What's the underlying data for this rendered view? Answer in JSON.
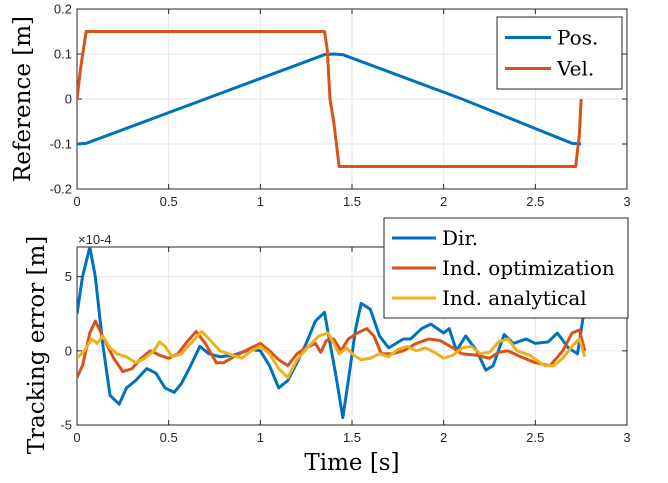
{
  "chart_data": [
    {
      "type": "line",
      "ylabel": "Reference [m]",
      "xlim": [
        0,
        3
      ],
      "ylim": [
        -0.2,
        0.2
      ],
      "x_ticks": [
        "0",
        "0.5",
        "1",
        "1.5",
        "2",
        "2.5",
        "3"
      ],
      "y_ticks": [
        "-0.2",
        "-0.1",
        "0",
        "0.1",
        "0.2"
      ],
      "grid": true,
      "legend_position": "top-right",
      "series": [
        {
          "name": "Pos.",
          "color": "#0072BD",
          "points": [
            [
              0.0,
              -0.1
            ],
            [
              0.05,
              -0.0985
            ],
            [
              0.7,
              0.0
            ],
            [
              1.35,
              0.0985
            ],
            [
              1.4,
              0.1
            ],
            [
              1.45,
              0.0985
            ],
            [
              2.1,
              0.0
            ],
            [
              2.7,
              -0.0985
            ],
            [
              2.75,
              -0.1
            ]
          ]
        },
        {
          "name": "Vel.",
          "color": "#D95319",
          "points": [
            [
              0.0,
              0.0
            ],
            [
              0.02,
              0.07
            ],
            [
              0.05,
              0.15
            ],
            [
              1.35,
              0.15
            ],
            [
              1.365,
              0.11
            ],
            [
              1.38,
              0.0
            ],
            [
              1.4,
              -0.05
            ],
            [
              1.43,
              -0.15
            ],
            [
              2.72,
              -0.15
            ],
            [
              2.74,
              -0.08
            ],
            [
              2.75,
              0.0
            ]
          ]
        }
      ]
    },
    {
      "type": "line",
      "xlabel": "Time [s]",
      "ylabel": "Tracking error [m]",
      "y_exponent": "×10-4",
      "xlim": [
        0,
        3
      ],
      "ylim": [
        -5,
        7
      ],
      "x_ticks": [
        "0",
        "0.5",
        "1",
        "1.5",
        "2",
        "2.5",
        "3"
      ],
      "y_ticks": [
        "-5",
        "0",
        "5"
      ],
      "grid": true,
      "legend_position": "top-right",
      "series": [
        {
          "name": "Dir.",
          "color": "#0072BD",
          "points": [
            [
              0.0,
              2.5
            ],
            [
              0.03,
              5.0
            ],
            [
              0.07,
              7.0
            ],
            [
              0.1,
              5.0
            ],
            [
              0.14,
              0.5
            ],
            [
              0.18,
              -3.0
            ],
            [
              0.23,
              -3.6
            ],
            [
              0.27,
              -2.5
            ],
            [
              0.32,
              -2.0
            ],
            [
              0.38,
              -1.2
            ],
            [
              0.43,
              -1.5
            ],
            [
              0.48,
              -2.5
            ],
            [
              0.53,
              -2.8
            ],
            [
              0.57,
              -2.2
            ],
            [
              0.62,
              -1.0
            ],
            [
              0.67,
              0.3
            ],
            [
              0.72,
              -0.2
            ],
            [
              0.78,
              -0.4
            ],
            [
              0.85,
              -0.3
            ],
            [
              0.9,
              -0.1
            ],
            [
              0.95,
              0.1
            ],
            [
              1.0,
              0.0
            ],
            [
              1.05,
              -1.0
            ],
            [
              1.1,
              -2.5
            ],
            [
              1.15,
              -2.0
            ],
            [
              1.2,
              -0.8
            ],
            [
              1.25,
              0.5
            ],
            [
              1.3,
              2.0
            ],
            [
              1.35,
              2.6
            ],
            [
              1.38,
              0.5
            ],
            [
              1.41,
              -1.5
            ],
            [
              1.45,
              -4.5
            ],
            [
              1.48,
              -2.0
            ],
            [
              1.52,
              1.5
            ],
            [
              1.55,
              3.2
            ],
            [
              1.6,
              2.8
            ],
            [
              1.65,
              1.0
            ],
            [
              1.7,
              0.2
            ],
            [
              1.78,
              0.8
            ],
            [
              1.82,
              0.8
            ],
            [
              1.88,
              1.5
            ],
            [
              1.93,
              1.8
            ],
            [
              2.0,
              1.2
            ],
            [
              2.03,
              1.5
            ],
            [
              2.07,
              0.0
            ],
            [
              2.12,
              1.0
            ],
            [
              2.18,
              0.0
            ],
            [
              2.23,
              -1.3
            ],
            [
              2.27,
              -1.0
            ],
            [
              2.33,
              1.1
            ],
            [
              2.38,
              0.5
            ],
            [
              2.45,
              0.8
            ],
            [
              2.5,
              0.5
            ],
            [
              2.57,
              0.6
            ],
            [
              2.62,
              1.2
            ],
            [
              2.68,
              0.2
            ],
            [
              2.73,
              -0.2
            ],
            [
              2.77,
              3.0
            ]
          ]
        },
        {
          "name": "Ind. optimization",
          "color": "#D95319",
          "points": [
            [
              0.0,
              -1.8
            ],
            [
              0.03,
              -1.0
            ],
            [
              0.07,
              1.2
            ],
            [
              0.1,
              2.0
            ],
            [
              0.14,
              1.0
            ],
            [
              0.2,
              -0.5
            ],
            [
              0.25,
              -1.4
            ],
            [
              0.3,
              -1.2
            ],
            [
              0.35,
              -0.5
            ],
            [
              0.4,
              0.0
            ],
            [
              0.45,
              -0.3
            ],
            [
              0.5,
              -0.5
            ],
            [
              0.55,
              -0.2
            ],
            [
              0.6,
              0.6
            ],
            [
              0.65,
              1.3
            ],
            [
              0.7,
              0.5
            ],
            [
              0.76,
              -0.8
            ],
            [
              0.8,
              -0.8
            ],
            [
              0.87,
              -0.3
            ],
            [
              0.95,
              0.2
            ],
            [
              1.0,
              0.5
            ],
            [
              1.05,
              0.0
            ],
            [
              1.1,
              -0.6
            ],
            [
              1.15,
              -1.0
            ],
            [
              1.2,
              -0.2
            ],
            [
              1.25,
              0.2
            ],
            [
              1.3,
              0.5
            ],
            [
              1.33,
              -0.1
            ],
            [
              1.36,
              0.7
            ],
            [
              1.4,
              0.8
            ],
            [
              1.44,
              0.0
            ],
            [
              1.48,
              0.8
            ],
            [
              1.53,
              1.2
            ],
            [
              1.58,
              1.5
            ],
            [
              1.62,
              1.0
            ],
            [
              1.66,
              -0.2
            ],
            [
              1.72,
              -0.2
            ],
            [
              1.78,
              0.0
            ],
            [
              1.85,
              0.5
            ],
            [
              1.92,
              0.8
            ],
            [
              1.98,
              0.7
            ],
            [
              2.05,
              0.2
            ],
            [
              2.1,
              -0.2
            ],
            [
              2.18,
              -0.3
            ],
            [
              2.25,
              -0.5
            ],
            [
              2.3,
              -0.1
            ],
            [
              2.35,
              0.0
            ],
            [
              2.42,
              -0.4
            ],
            [
              2.5,
              -0.8
            ],
            [
              2.58,
              -1.0
            ],
            [
              2.65,
              0.0
            ],
            [
              2.7,
              1.2
            ],
            [
              2.74,
              1.4
            ],
            [
              2.77,
              0.0
            ]
          ]
        },
        {
          "name": "Ind. analytical",
          "color": "#EDB120",
          "points": [
            [
              0.0,
              -0.5
            ],
            [
              0.04,
              0.0
            ],
            [
              0.08,
              0.8
            ],
            [
              0.11,
              0.5
            ],
            [
              0.14,
              1.0
            ],
            [
              0.18,
              0.2
            ],
            [
              0.22,
              -0.2
            ],
            [
              0.27,
              -0.4
            ],
            [
              0.32,
              -0.8
            ],
            [
              0.37,
              -0.5
            ],
            [
              0.42,
              0.0
            ],
            [
              0.45,
              0.6
            ],
            [
              0.48,
              0.3
            ],
            [
              0.52,
              -0.4
            ],
            [
              0.57,
              -0.2
            ],
            [
              0.62,
              0.5
            ],
            [
              0.68,
              1.3
            ],
            [
              0.72,
              0.8
            ],
            [
              0.78,
              0.0
            ],
            [
              0.85,
              -0.3
            ],
            [
              0.9,
              -0.5
            ],
            [
              0.95,
              0.0
            ],
            [
              1.0,
              0.3
            ],
            [
              1.05,
              -0.2
            ],
            [
              1.1,
              -1.2
            ],
            [
              1.15,
              -1.8
            ],
            [
              1.2,
              -0.6
            ],
            [
              1.27,
              0.4
            ],
            [
              1.32,
              1.0
            ],
            [
              1.37,
              1.2
            ],
            [
              1.4,
              0.5
            ],
            [
              1.43,
              -0.2
            ],
            [
              1.47,
              0.2
            ],
            [
              1.51,
              -0.3
            ],
            [
              1.55,
              -0.6
            ],
            [
              1.6,
              -0.5
            ],
            [
              1.65,
              -0.2
            ],
            [
              1.7,
              -0.4
            ],
            [
              1.75,
              0.1
            ],
            [
              1.8,
              0.3
            ],
            [
              1.85,
              0.0
            ],
            [
              1.9,
              0.2
            ],
            [
              1.95,
              -0.1
            ],
            [
              2.0,
              -0.5
            ],
            [
              2.05,
              -0.3
            ],
            [
              2.1,
              0.2
            ],
            [
              2.15,
              0.3
            ],
            [
              2.2,
              -0.2
            ],
            [
              2.25,
              -0.1
            ],
            [
              2.3,
              0.6
            ],
            [
              2.35,
              0.8
            ],
            [
              2.4,
              0.0
            ],
            [
              2.47,
              -0.3
            ],
            [
              2.55,
              -1.0
            ],
            [
              2.6,
              -1.0
            ],
            [
              2.65,
              -0.5
            ],
            [
              2.7,
              0.3
            ],
            [
              2.74,
              0.8
            ],
            [
              2.77,
              -0.4
            ]
          ]
        }
      ]
    }
  ]
}
